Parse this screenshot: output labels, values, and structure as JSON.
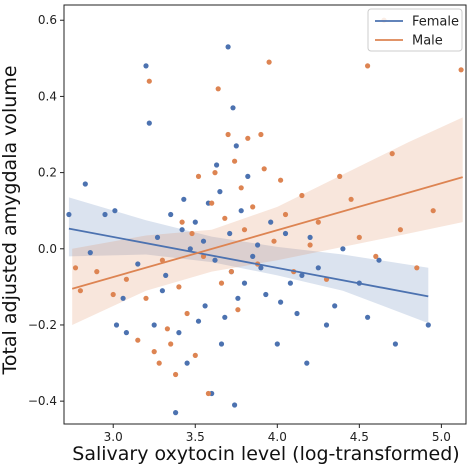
{
  "chart_data": {
    "type": "scatter",
    "xlabel": "Salivary oxytocin level (log-transformed)",
    "ylabel": "Total adjusted amygdala volume",
    "xlim": [
      2.7,
      5.15
    ],
    "ylim": [
      -0.46,
      0.64
    ],
    "x_ticks": [
      3.0,
      3.5,
      4.0,
      4.5,
      5.0
    ],
    "x_tick_labels": [
      "3.0",
      "3.5",
      "4.0",
      "4.5",
      "5.0"
    ],
    "y_ticks": [
      -0.4,
      -0.2,
      0.0,
      0.2,
      0.4,
      0.6
    ],
    "y_tick_labels": [
      "−0.4",
      "−0.2",
      "0.0",
      "0.2",
      "0.4",
      "0.6"
    ],
    "grid": false,
    "legend_position": "top-right",
    "series": [
      {
        "name": "Female",
        "color": "#4c72b0",
        "fit_line": {
          "x": [
            2.73,
            4.92
          ],
          "y": [
            0.053,
            -0.125
          ]
        },
        "ci_band": {
          "x": [
            2.73,
            3.2,
            3.6,
            4.0,
            4.4,
            4.92
          ],
          "upper": [
            0.135,
            0.075,
            0.032,
            0.005,
            -0.015,
            -0.05
          ],
          "lower": [
            -0.02,
            -0.015,
            -0.035,
            -0.07,
            -0.11,
            -0.195
          ]
        },
        "points": [
          {
            "x": 2.73,
            "y": 0.09
          },
          {
            "x": 2.83,
            "y": 0.17
          },
          {
            "x": 2.86,
            "y": -0.01
          },
          {
            "x": 2.95,
            "y": 0.09
          },
          {
            "x": 3.01,
            "y": 0.1
          },
          {
            "x": 3.02,
            "y": -0.2
          },
          {
            "x": 3.06,
            "y": -0.13
          },
          {
            "x": 3.08,
            "y": -0.22
          },
          {
            "x": 3.15,
            "y": -0.04
          },
          {
            "x": 3.2,
            "y": 0.48
          },
          {
            "x": 3.22,
            "y": 0.33
          },
          {
            "x": 3.25,
            "y": -0.2
          },
          {
            "x": 3.27,
            "y": 0.03
          },
          {
            "x": 3.3,
            "y": -0.11
          },
          {
            "x": 3.32,
            "y": -0.07
          },
          {
            "x": 3.35,
            "y": 0.09
          },
          {
            "x": 3.38,
            "y": -0.43
          },
          {
            "x": 3.4,
            "y": -0.22
          },
          {
            "x": 3.42,
            "y": 0.05
          },
          {
            "x": 3.43,
            "y": 0.13
          },
          {
            "x": 3.45,
            "y": -0.3
          },
          {
            "x": 3.47,
            "y": 0.0
          },
          {
            "x": 3.5,
            "y": 0.07
          },
          {
            "x": 3.52,
            "y": -0.19
          },
          {
            "x": 3.55,
            "y": 0.02
          },
          {
            "x": 3.56,
            "y": -0.15
          },
          {
            "x": 3.58,
            "y": 0.12
          },
          {
            "x": 3.6,
            "y": -0.38
          },
          {
            "x": 3.62,
            "y": -0.03
          },
          {
            "x": 3.63,
            "y": 0.22
          },
          {
            "x": 3.65,
            "y": 0.15
          },
          {
            "x": 3.66,
            "y": -0.25
          },
          {
            "x": 3.68,
            "y": -0.18
          },
          {
            "x": 3.7,
            "y": 0.53
          },
          {
            "x": 3.71,
            "y": 0.04
          },
          {
            "x": 3.72,
            "y": -0.06
          },
          {
            "x": 3.73,
            "y": 0.37
          },
          {
            "x": 3.74,
            "y": -0.41
          },
          {
            "x": 3.75,
            "y": 0.27
          },
          {
            "x": 3.76,
            "y": -0.13
          },
          {
            "x": 3.78,
            "y": 0.1
          },
          {
            "x": 3.8,
            "y": -0.09
          },
          {
            "x": 3.82,
            "y": 0.19
          },
          {
            "x": 3.85,
            "y": -0.02
          },
          {
            "x": 3.88,
            "y": 0.01
          },
          {
            "x": 3.9,
            "y": -0.05
          },
          {
            "x": 3.93,
            "y": -0.12
          },
          {
            "x": 3.96,
            "y": 0.07
          },
          {
            "x": 4.0,
            "y": -0.25
          },
          {
            "x": 4.02,
            "y": -0.14
          },
          {
            "x": 4.05,
            "y": 0.04
          },
          {
            "x": 4.08,
            "y": -0.09
          },
          {
            "x": 4.12,
            "y": -0.17
          },
          {
            "x": 4.15,
            "y": -0.07
          },
          {
            "x": 4.18,
            "y": -0.3
          },
          {
            "x": 4.2,
            "y": 0.03
          },
          {
            "x": 4.25,
            "y": -0.05
          },
          {
            "x": 4.3,
            "y": -0.2
          },
          {
            "x": 4.35,
            "y": -0.15
          },
          {
            "x": 4.4,
            "y": 0.0
          },
          {
            "x": 4.5,
            "y": -0.09
          },
          {
            "x": 4.55,
            "y": -0.18
          },
          {
            "x": 4.62,
            "y": -0.03
          },
          {
            "x": 4.72,
            "y": -0.25
          },
          {
            "x": 4.92,
            "y": -0.2
          }
        ]
      },
      {
        "name": "Male",
        "color": "#dd8452",
        "fit_line": {
          "x": [
            2.75,
            5.13
          ],
          "y": [
            -0.105,
            0.188
          ]
        },
        "ci_band": {
          "x": [
            2.75,
            3.2,
            3.6,
            4.0,
            4.4,
            4.8,
            5.13
          ],
          "upper": [
            0.0,
            0.035,
            0.05,
            0.11,
            0.195,
            0.28,
            0.345
          ],
          "lower": [
            -0.2,
            -0.11,
            -0.06,
            -0.03,
            0.005,
            0.04,
            0.07
          ]
        },
        "points": [
          {
            "x": 2.77,
            "y": -0.05
          },
          {
            "x": 2.8,
            "y": -0.11
          },
          {
            "x": 2.9,
            "y": -0.06
          },
          {
            "x": 3.0,
            "y": -0.12
          },
          {
            "x": 3.08,
            "y": -0.08
          },
          {
            "x": 3.15,
            "y": -0.24
          },
          {
            "x": 3.2,
            "y": -0.13
          },
          {
            "x": 3.22,
            "y": 0.44
          },
          {
            "x": 3.25,
            "y": -0.27
          },
          {
            "x": 3.28,
            "y": -0.3
          },
          {
            "x": 3.3,
            "y": -0.03
          },
          {
            "x": 3.33,
            "y": -0.21
          },
          {
            "x": 3.35,
            "y": -0.25
          },
          {
            "x": 3.38,
            "y": -0.33
          },
          {
            "x": 3.4,
            "y": -0.1
          },
          {
            "x": 3.42,
            "y": 0.07
          },
          {
            "x": 3.45,
            "y": -0.17
          },
          {
            "x": 3.48,
            "y": 0.04
          },
          {
            "x": 3.5,
            "y": -0.28
          },
          {
            "x": 3.52,
            "y": 0.19
          },
          {
            "x": 3.55,
            "y": -0.02
          },
          {
            "x": 3.58,
            "y": -0.38
          },
          {
            "x": 3.6,
            "y": 0.12
          },
          {
            "x": 3.62,
            "y": 0.2
          },
          {
            "x": 3.64,
            "y": 0.42
          },
          {
            "x": 3.66,
            "y": -0.09
          },
          {
            "x": 3.68,
            "y": 0.08
          },
          {
            "x": 3.7,
            "y": 0.3
          },
          {
            "x": 3.72,
            "y": -0.06
          },
          {
            "x": 3.74,
            "y": 0.23
          },
          {
            "x": 3.76,
            "y": -0.16
          },
          {
            "x": 3.78,
            "y": 0.16
          },
          {
            "x": 3.8,
            "y": 0.05
          },
          {
            "x": 3.82,
            "y": 0.29
          },
          {
            "x": 3.85,
            "y": 0.11
          },
          {
            "x": 3.88,
            "y": -0.04
          },
          {
            "x": 3.9,
            "y": 0.3
          },
          {
            "x": 3.92,
            "y": 0.21
          },
          {
            "x": 3.95,
            "y": 0.49
          },
          {
            "x": 3.98,
            "y": 0.02
          },
          {
            "x": 4.02,
            "y": 0.18
          },
          {
            "x": 4.05,
            "y": 0.09
          },
          {
            "x": 4.1,
            "y": -0.06
          },
          {
            "x": 4.15,
            "y": 0.14
          },
          {
            "x": 4.2,
            "y": 0.01
          },
          {
            "x": 4.25,
            "y": 0.07
          },
          {
            "x": 4.3,
            "y": -0.08
          },
          {
            "x": 4.38,
            "y": 0.19
          },
          {
            "x": 4.45,
            "y": 0.13
          },
          {
            "x": 4.5,
            "y": 0.03
          },
          {
            "x": 4.55,
            "y": 0.48
          },
          {
            "x": 4.6,
            "y": -0.02
          },
          {
            "x": 4.65,
            "y": 0.6
          },
          {
            "x": 4.7,
            "y": 0.25
          },
          {
            "x": 4.75,
            "y": 0.05
          },
          {
            "x": 4.85,
            "y": -0.05
          },
          {
            "x": 4.95,
            "y": 0.1
          },
          {
            "x": 5.12,
            "y": 0.47
          }
        ]
      }
    ]
  }
}
